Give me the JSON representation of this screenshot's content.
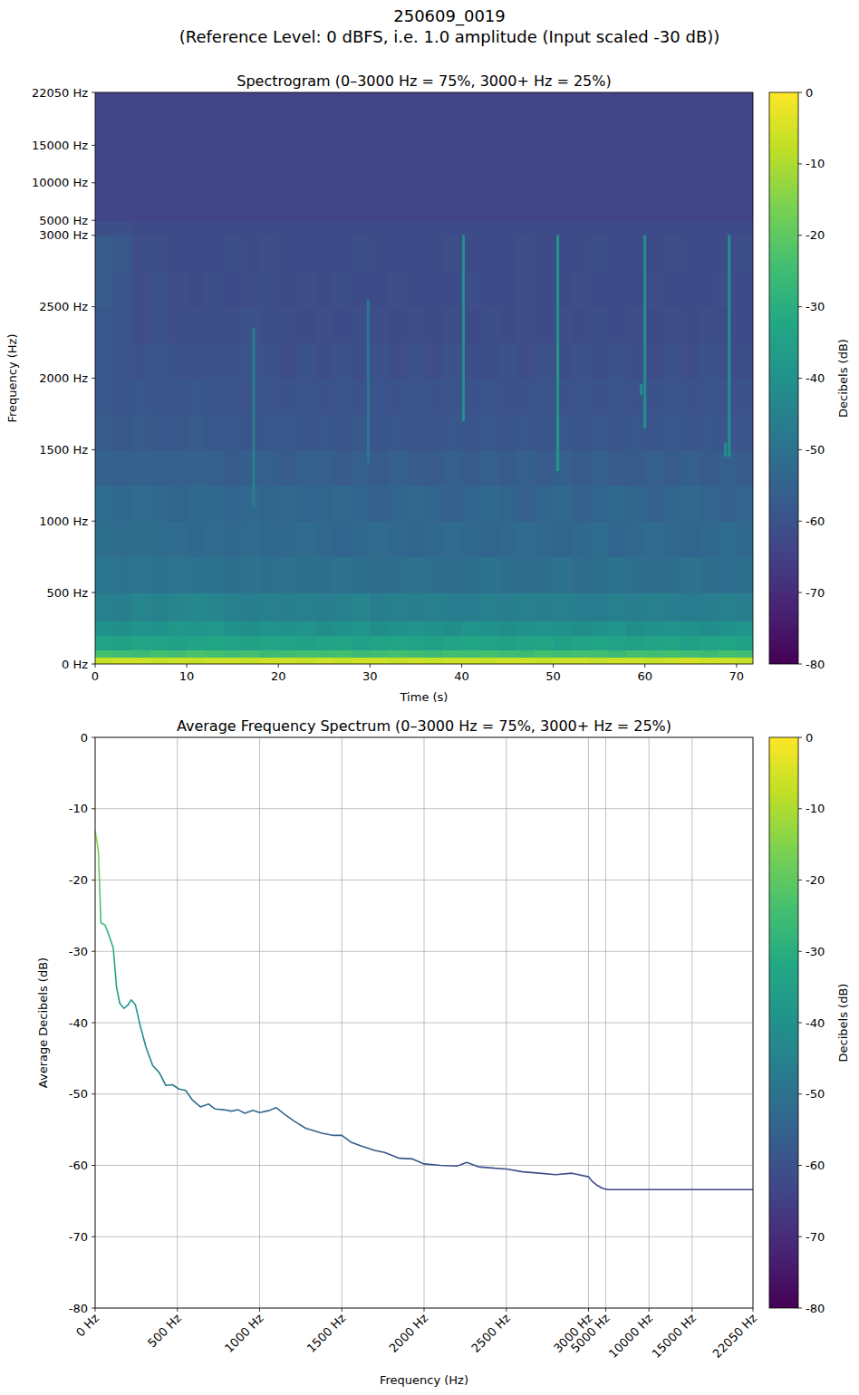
{
  "title": "250609_0019",
  "subtitle": "(Reference Level: 0 dBFS, i.e. 1.0 amplitude (Input scaled -30 dB))",
  "chart_data": [
    {
      "type": "heatmap",
      "title": "Spectrogram (0–3000 Hz = 75%, 3000+ Hz = 25%)",
      "xlabel": "Time (s)",
      "ylabel": "Frequency (Hz)",
      "xlim": [
        0,
        71.8
      ],
      "xticks": [
        0,
        10,
        20,
        30,
        40,
        50,
        60,
        70
      ],
      "ylim": [
        0,
        22050
      ],
      "scale_break": {
        "value": 3000,
        "share": 75
      },
      "yticks": [
        {
          "value": 0,
          "label": "0 Hz"
        },
        {
          "value": 500,
          "label": "500 Hz"
        },
        {
          "value": 1000,
          "label": "1000 Hz"
        },
        {
          "value": 1500,
          "label": "1500 Hz"
        },
        {
          "value": 2000,
          "label": "2000 Hz"
        },
        {
          "value": 2500,
          "label": "2500 Hz"
        },
        {
          "value": 3000,
          "label": "3000 Hz"
        },
        {
          "value": 5000,
          "label": "5000 Hz"
        },
        {
          "value": 10000,
          "label": "10000 Hz"
        },
        {
          "value": 15000,
          "label": "15000 Hz"
        },
        {
          "value": 22050,
          "label": "22050 Hz"
        }
      ],
      "x_bins": [
        0,
        2,
        4,
        6,
        8,
        10,
        12,
        14,
        16,
        18,
        20,
        22,
        24,
        26,
        28,
        30,
        32,
        34,
        36,
        38,
        40,
        42,
        44,
        46,
        48,
        50,
        52,
        54,
        56,
        58,
        60,
        62,
        64,
        66,
        68,
        70,
        72
      ],
      "y_bins": [
        0,
        50,
        100,
        200,
        300,
        500,
        750,
        1000,
        1250,
        1500,
        1750,
        2000,
        2250,
        2500,
        2750,
        3000,
        5000,
        22050
      ],
      "values": [
        [
          -7,
          -6,
          -6,
          -7,
          -6,
          -7,
          -6,
          -6,
          -7,
          -6,
          -6,
          -7,
          -6,
          -7,
          -6,
          -6,
          -7,
          -6,
          -7,
          -6,
          -6,
          -7,
          -6,
          -6,
          -7,
          -6,
          -6,
          -7,
          -6,
          -6,
          -7,
          -6,
          -5,
          -6,
          -6,
          -7
        ],
        [
          -24,
          -25,
          -26,
          -24,
          -25,
          -23,
          -24,
          -25,
          -24,
          -26,
          -25,
          -24,
          -25,
          -24,
          -26,
          -25,
          -24,
          -25,
          -26,
          -24,
          -25,
          -24,
          -25,
          -26,
          -24,
          -25,
          -24,
          -25,
          -26,
          -24,
          -25,
          -24,
          -25,
          -26,
          -24,
          -25
        ],
        [
          -34,
          -35,
          -33,
          -34,
          -35,
          -34,
          -33,
          -34,
          -35,
          -33,
          -34,
          -35,
          -34,
          -33,
          -35,
          -34,
          -33,
          -34,
          -35,
          -34,
          -33,
          -34,
          -35,
          -34,
          -33,
          -35,
          -34,
          -33,
          -34,
          -35,
          -34,
          -33,
          -35,
          -34,
          -33,
          -35
        ],
        [
          -40,
          -41,
          -39,
          -40,
          -38,
          -39,
          -38,
          -40,
          -41,
          -39,
          -40,
          -39,
          -41,
          -40,
          -39,
          -41,
          -40,
          -39,
          -40,
          -41,
          -39,
          -40,
          -41,
          -40,
          -39,
          -40,
          -41,
          -40,
          -39,
          -41,
          -40,
          -39,
          -40,
          -41,
          -40,
          -39
        ],
        [
          -45,
          -46,
          -44,
          -45,
          -44,
          -43,
          -44,
          -45,
          -46,
          -45,
          -46,
          -45,
          -46,
          -45,
          -44,
          -46,
          -45,
          -46,
          -45,
          -46,
          -47,
          -45,
          -46,
          -45,
          -46,
          -45,
          -46,
          -47,
          -45,
          -46,
          -45,
          -46,
          -47,
          -46,
          -45,
          -46
        ],
        [
          -49,
          -50,
          -49,
          -50,
          -49,
          -50,
          -50,
          -51,
          -50,
          -51,
          -50,
          -51,
          -51,
          -50,
          -51,
          -52,
          -51,
          -50,
          -51,
          -52,
          -51,
          -50,
          -51,
          -52,
          -51,
          -50,
          -52,
          -51,
          -50,
          -51,
          -52,
          -51,
          -50,
          -51,
          -52,
          -51
        ],
        [
          -51,
          -52,
          -51,
          -52,
          -52,
          -53,
          -52,
          -53,
          -52,
          -53,
          -53,
          -52,
          -53,
          -54,
          -53,
          -52,
          -53,
          -54,
          -53,
          -52,
          -53,
          -54,
          -53,
          -52,
          -53,
          -54,
          -53,
          -52,
          -54,
          -53,
          -52,
          -53,
          -54,
          -53,
          -52,
          -53
        ],
        [
          -52,
          -53,
          -52,
          -53,
          -54,
          -53,
          -53,
          -54,
          -53,
          -54,
          -53,
          -54,
          -54,
          -53,
          -54,
          -55,
          -54,
          -53,
          -54,
          -55,
          -54,
          -53,
          -54,
          -55,
          -54,
          -53,
          -55,
          -54,
          -53,
          -54,
          -55,
          -54,
          -53,
          -54,
          -55,
          -54
        ],
        [
          -55,
          -56,
          -55,
          -56,
          -56,
          -55,
          -56,
          -57,
          -56,
          -56,
          -57,
          -56,
          -56,
          -57,
          -56,
          -57,
          -56,
          -57,
          -57,
          -56,
          -57,
          -56,
          -57,
          -56,
          -57,
          -56,
          -57,
          -56,
          -57,
          -57,
          -56,
          -57,
          -56,
          -57,
          -56,
          -57
        ],
        [
          -57,
          -58,
          -57,
          -58,
          -58,
          -57,
          -58,
          -58,
          -59,
          -58,
          -58,
          -59,
          -58,
          -59,
          -58,
          -59,
          -58,
          -59,
          -59,
          -58,
          -59,
          -58,
          -59,
          -58,
          -59,
          -58,
          -59,
          -58,
          -59,
          -58,
          -59,
          -58,
          -59,
          -58,
          -59,
          -59
        ],
        [
          -58,
          -59,
          -58,
          -59,
          -59,
          -58,
          -59,
          -59,
          -60,
          -59,
          -60,
          -59,
          -60,
          -59,
          -60,
          -59,
          -60,
          -59,
          -60,
          -59,
          -60,
          -59,
          -60,
          -60,
          -59,
          -60,
          -59,
          -60,
          -59,
          -60,
          -60,
          -59,
          -60,
          -59,
          -60,
          -60
        ],
        [
          -58,
          -59,
          -60,
          -59,
          -60,
          -60,
          -60,
          -60,
          -59,
          -60,
          -61,
          -60,
          -61,
          -60,
          -61,
          -60,
          -61,
          -60,
          -61,
          -60,
          -61,
          -61,
          -60,
          -61,
          -60,
          -61,
          -60,
          -61,
          -60,
          -61,
          -61,
          -60,
          -61,
          -60,
          -61,
          -61
        ],
        [
          -58,
          -59,
          -61,
          -60,
          -61,
          -61,
          -61,
          -61,
          -60,
          -61,
          -61,
          -62,
          -61,
          -62,
          -61,
          -61,
          -62,
          -61,
          -62,
          -61,
          -62,
          -61,
          -62,
          -61,
          -62,
          -61,
          -62,
          -61,
          -62,
          -61,
          -62,
          -61,
          -62,
          -61,
          -62,
          -62
        ],
        [
          -57,
          -59,
          -61,
          -60,
          -61,
          -62,
          -61,
          -62,
          -61,
          -61,
          -62,
          -61,
          -62,
          -61,
          -62,
          -62,
          -61,
          -62,
          -62,
          -62,
          -61,
          -62,
          -62,
          -61,
          -62,
          -62,
          -61,
          -62,
          -62,
          -62,
          -61,
          -62,
          -62,
          -62,
          -61,
          -62
        ],
        [
          -57,
          -58,
          -61,
          -61,
          -62,
          -62,
          -62,
          -61,
          -62,
          -61,
          -62,
          -62,
          -62,
          -62,
          -61,
          -62,
          -62,
          -62,
          -62,
          -61,
          -62,
          -62,
          -62,
          -61,
          -62,
          -62,
          -62,
          -61,
          -62,
          -62,
          -62,
          -61,
          -62,
          -62,
          -62,
          -61
        ],
        [
          -61,
          -61,
          -62,
          -62,
          -62,
          -62,
          -62,
          -62,
          -62,
          -62,
          -62,
          -62,
          -62,
          -62,
          -62,
          -62,
          -62,
          -62,
          -62,
          -62,
          -62,
          -62,
          -62,
          -62,
          -62,
          -62,
          -62,
          -62,
          -62,
          -62,
          -62,
          -62,
          -62,
          -62,
          -62,
          -62
        ],
        [
          -64,
          -64,
          -64,
          -64,
          -64,
          -64,
          -64,
          -64,
          -64,
          -64,
          -64,
          -64,
          -64,
          -64,
          -64,
          -64,
          -64,
          -64,
          -64,
          -64,
          -64,
          -64,
          -64,
          -64,
          -64,
          -64,
          -64,
          -64,
          -64,
          -64,
          -64,
          -64,
          -64,
          -64,
          -64,
          -64
        ]
      ],
      "events": {
        "time": [
          17.3,
          29.8,
          40.2,
          50.5,
          60,
          69.2,
          59.6,
          68.8
        ],
        "freq_low": [
          1100,
          1400,
          1700,
          1350,
          1650,
          1450,
          1880,
          1450
        ],
        "freq_high": [
          2350,
          2550,
          3050,
          3050,
          3000,
          3050,
          1960,
          1550
        ],
        "values": [
          -46,
          -48,
          -40,
          -38,
          -40,
          -40,
          -42,
          -42
        ]
      },
      "colorbar": {
        "range": [
          -80,
          0
        ],
        "ticks": [
          0,
          -10,
          -20,
          -30,
          -40,
          -50,
          -60,
          -70,
          -80
        ],
        "label": "Decibels (dB)"
      }
    },
    {
      "type": "line",
      "title": "Average Frequency Spectrum (0–3000 Hz = 75%, 3000+ Hz = 25%)",
      "xlabel": "Frequency (Hz)",
      "ylabel": "Average Decibels (dB)",
      "xlim": [
        0,
        22050
      ],
      "scale_break": {
        "value": 3000,
        "share": 75
      },
      "xticks": [
        {
          "value": 0,
          "label": "0 Hz"
        },
        {
          "value": 500,
          "label": "500 Hz"
        },
        {
          "value": 1000,
          "label": "1000 Hz"
        },
        {
          "value": 1500,
          "label": "1500 Hz"
        },
        {
          "value": 2000,
          "label": "2000 Hz"
        },
        {
          "value": 2500,
          "label": "2500 Hz"
        },
        {
          "value": 3000,
          "label": "3000 Hz"
        },
        {
          "value": 5000,
          "label": "5000 Hz"
        },
        {
          "value": 10000,
          "label": "10000 Hz"
        },
        {
          "value": 15000,
          "label": "15000 Hz"
        },
        {
          "value": 22050,
          "label": "22050 Hz"
        }
      ],
      "ylim": [
        -80,
        0
      ],
      "yticks": [
        0,
        -10,
        -20,
        -30,
        -40,
        -50,
        -60,
        -70,
        -80
      ],
      "grid": true,
      "x": [
        0,
        20,
        35,
        60,
        80,
        110,
        130,
        150,
        175,
        200,
        220,
        245,
        275,
        310,
        350,
        390,
        430,
        470,
        510,
        550,
        590,
        640,
        690,
        730,
        780,
        830,
        870,
        910,
        960,
        1000,
        1060,
        1100,
        1150,
        1210,
        1280,
        1380,
        1450,
        1500,
        1560,
        1620,
        1700,
        1760,
        1850,
        1930,
        2000,
        2100,
        2200,
        2260,
        2330,
        2430,
        2500,
        2600,
        2700,
        2800,
        2900,
        3000,
        3400,
        4000,
        4600,
        5200,
        8000,
        15000,
        22050
      ],
      "values": [
        -13,
        -16,
        -26,
        -26.3,
        -27.5,
        -29.5,
        -35,
        -37.3,
        -38,
        -37.5,
        -36.8,
        -37.5,
        -40.5,
        -43.5,
        -46,
        -47,
        -48.8,
        -48.7,
        -49.3,
        -49.5,
        -50.8,
        -51.8,
        -51.4,
        -52.1,
        -52.2,
        -52.4,
        -52.2,
        -52.7,
        -52.3,
        -52.6,
        -52.3,
        -51.9,
        -52.8,
        -53.8,
        -54.8,
        -55.5,
        -55.8,
        -55.8,
        -56.8,
        -57.3,
        -57.9,
        -58.2,
        -59,
        -59.1,
        -59.8,
        -60,
        -60.1,
        -59.6,
        -60.2,
        -60.4,
        -60.5,
        -60.9,
        -61.1,
        -61.3,
        -61.1,
        -61.6,
        -62.2,
        -62.8,
        -63.2,
        -63.4,
        -63.4,
        -63.4,
        -63.4
      ],
      "colorbar": {
        "range": [
          -80,
          0
        ],
        "ticks": [
          0,
          -10,
          -20,
          -30,
          -40,
          -50,
          -60,
          -70,
          -80
        ],
        "label": "Decibels (dB)"
      }
    }
  ]
}
